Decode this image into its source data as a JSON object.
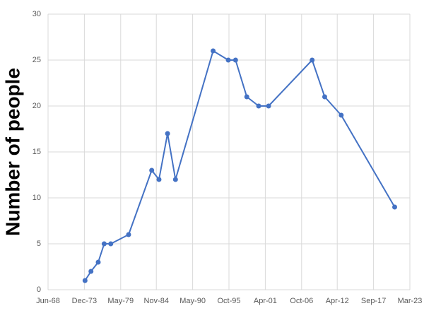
{
  "chart_data": {
    "type": "line",
    "y_label": "Number of people",
    "x": [
      1974.0,
      1974.9,
      1976.0,
      1976.9,
      1977.9,
      1980.6,
      1984.1,
      1985.2,
      1986.5,
      1987.7,
      1993.4,
      1995.7,
      1996.8,
      1998.5,
      2000.3,
      2001.8,
      2008.4,
      2010.3,
      2012.8,
      2020.9
    ],
    "series": [
      {
        "color": "#4472c4",
        "values": [
          1,
          2,
          3,
          5,
          5,
          6,
          13,
          12,
          17,
          12,
          26,
          25,
          25,
          21,
          20,
          20,
          25,
          21,
          19,
          9
        ]
      }
    ],
    "xlim": [
      1968.4,
      2023.2
    ],
    "xticks": [
      {
        "value": 1968.4,
        "label": "Jun-68"
      },
      {
        "value": 1973.9,
        "label": "Dec-73"
      },
      {
        "value": 1979.4,
        "label": "May-79"
      },
      {
        "value": 1984.8,
        "label": "Nov-84"
      },
      {
        "value": 1990.3,
        "label": "May-90"
      },
      {
        "value": 1995.8,
        "label": "Oct-95"
      },
      {
        "value": 2001.3,
        "label": "Apr-01"
      },
      {
        "value": 2006.8,
        "label": "Oct-06"
      },
      {
        "value": 2012.2,
        "label": "Apr-12"
      },
      {
        "value": 2017.7,
        "label": "Sep-17"
      },
      {
        "value": 2023.2,
        "label": "Mar-23"
      }
    ],
    "ylim": [
      0,
      30
    ],
    "yticks": [
      0,
      5,
      10,
      15,
      20,
      25,
      30
    ],
    "grid": true
  }
}
